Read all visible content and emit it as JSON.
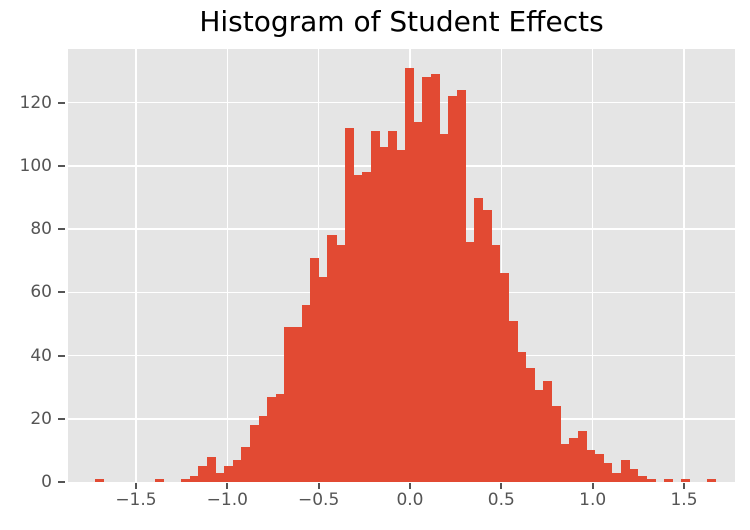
{
  "figure": {
    "title": "Histogram of Student Effects"
  },
  "colors": {
    "background": "#ffffff",
    "plot_background": "#e5e5e5",
    "bar": "#e24a33",
    "grid": "#ffffff",
    "tick": "#555555",
    "tick_label": "#555555",
    "title": "#000000"
  },
  "chart_data": {
    "type": "bar",
    "subtype": "histogram",
    "title": "Histogram of Student Effects",
    "xlabel": "",
    "ylabel": "",
    "style": "ggplot",
    "grid": true,
    "legend": null,
    "bin_start": -1.726,
    "bin_width": 0.0472,
    "counts": [
      1,
      0,
      0,
      0,
      0,
      0,
      0,
      1,
      0,
      0,
      1,
      2,
      5,
      8,
      3,
      5,
      7,
      11,
      18,
      21,
      27,
      28,
      49,
      49,
      56,
      71,
      65,
      78,
      75,
      112,
      97,
      98,
      111,
      106,
      111,
      105,
      131,
      114,
      128,
      129,
      110,
      122,
      124,
      76,
      90,
      86,
      75,
      66,
      51,
      41,
      36,
      29,
      32,
      24,
      12,
      14,
      16,
      10,
      9,
      6,
      3,
      7,
      4,
      2,
      1,
      0,
      1,
      0,
      1,
      0,
      0,
      1
    ],
    "x_ticks": [
      -1.5,
      -1.0,
      -0.5,
      0.0,
      0.5,
      1.0,
      1.5
    ],
    "x_tick_labels": [
      "−1.5",
      "−1.0",
      "−0.5",
      "0.0",
      "0.5",
      "1.0",
      "1.5"
    ],
    "y_ticks": [
      0,
      20,
      40,
      60,
      80,
      100,
      120
    ],
    "y_tick_labels": [
      "0",
      "20",
      "40",
      "60",
      "80",
      "100",
      "120"
    ],
    "xlim": [
      -1.872,
      1.779
    ],
    "ylim": [
      0,
      137
    ]
  }
}
